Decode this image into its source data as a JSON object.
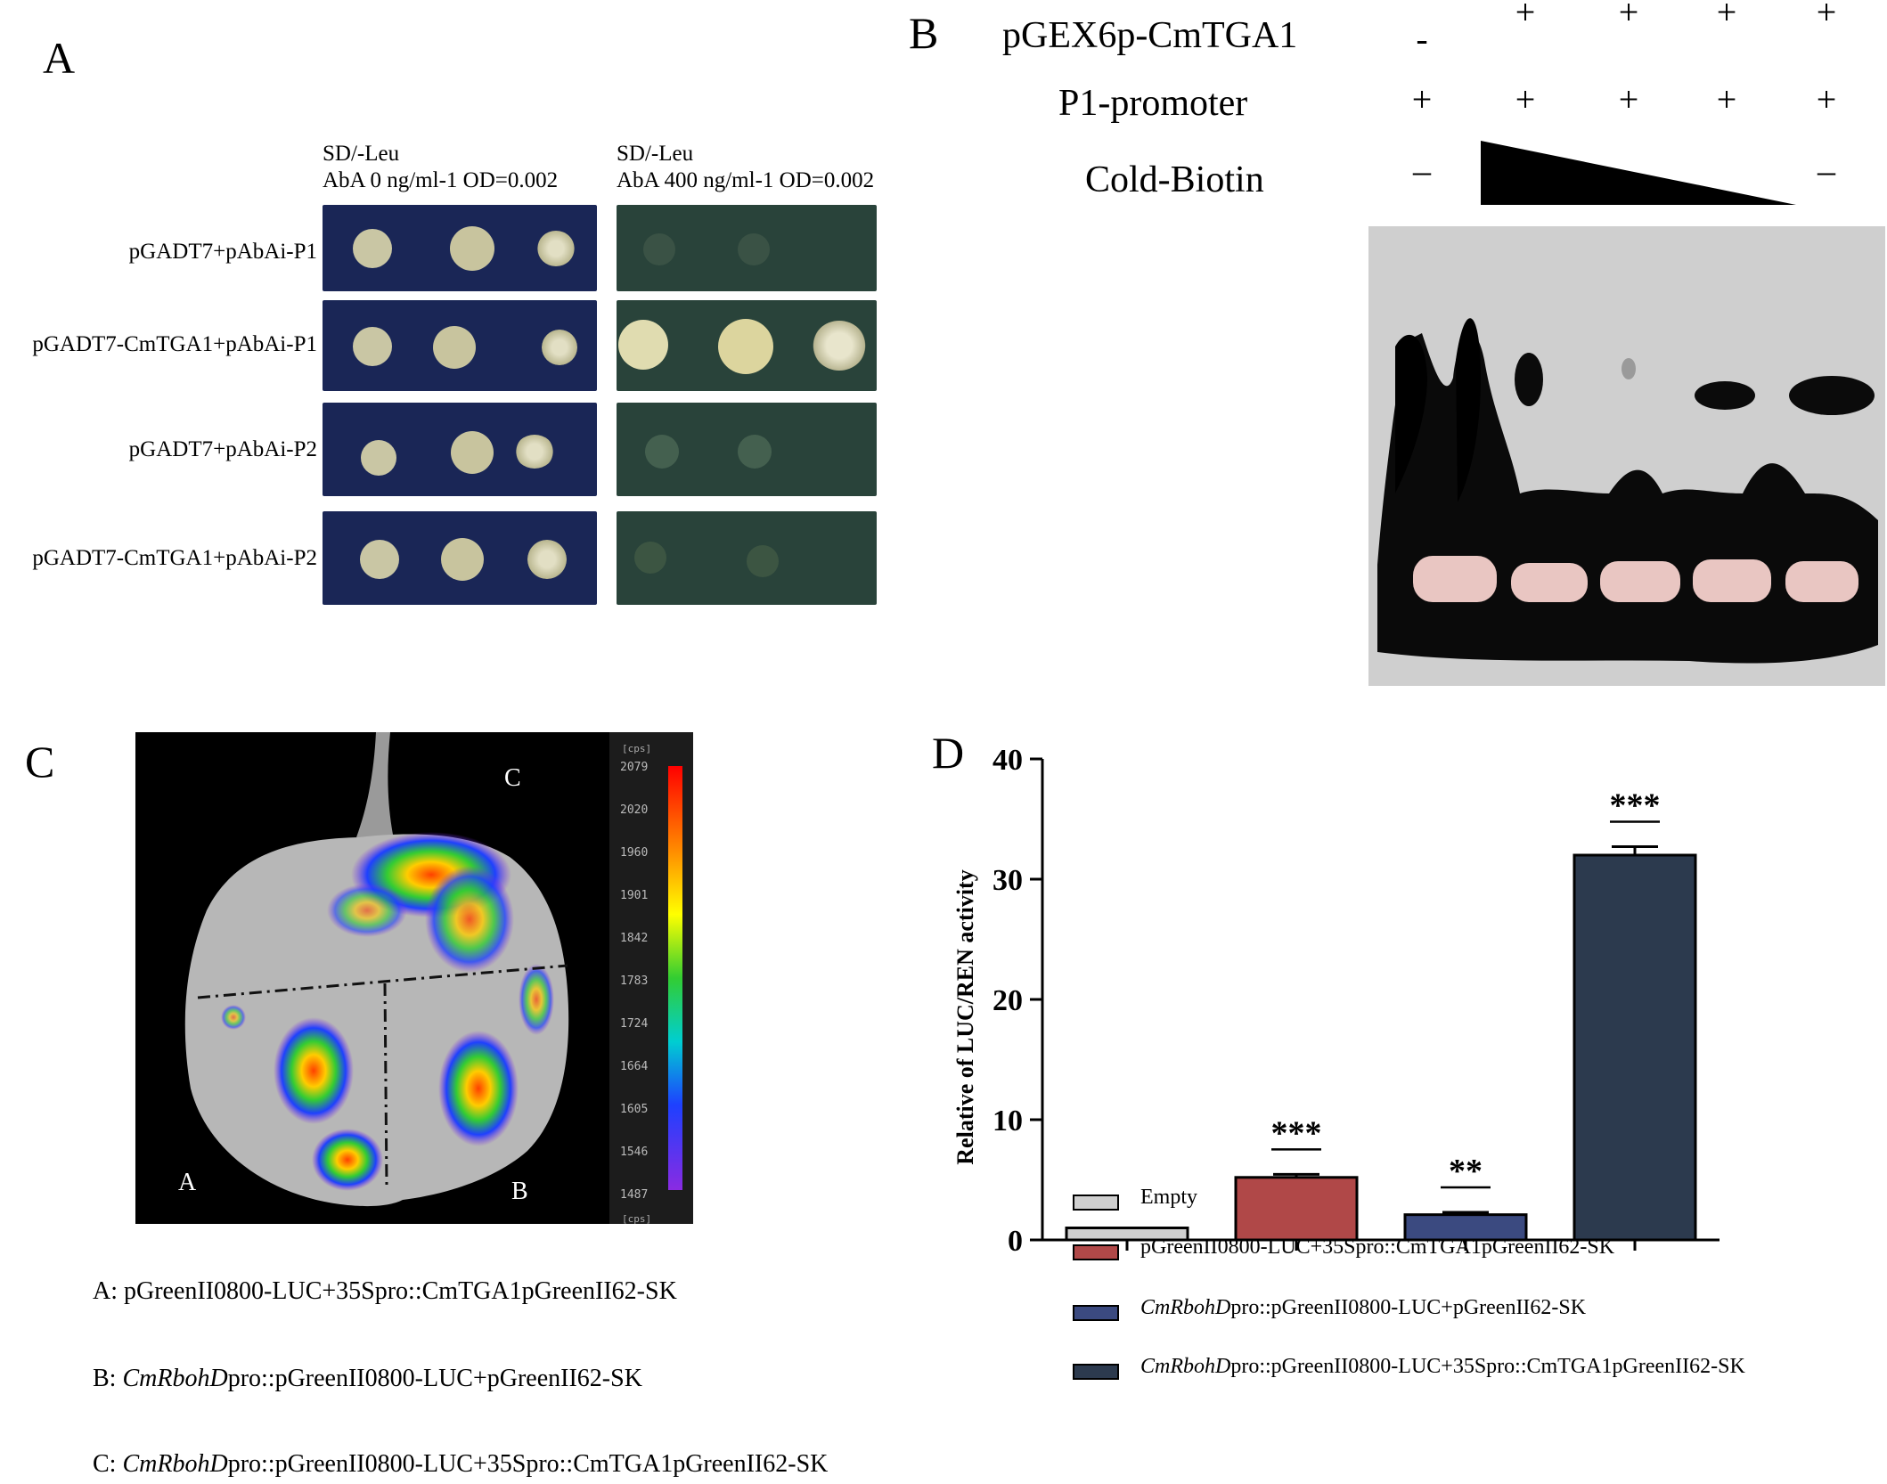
{
  "panels": {
    "A": {
      "letter": "A",
      "left_header": {
        "line1": "SD/-Leu",
        "line2": "AbA 0 ng/ml-1 OD=0.002"
      },
      "right_header": {
        "line1": "SD/-Leu",
        "line2": "AbA 400 ng/ml-1 OD=0.002"
      },
      "rows": [
        {
          "label": "pGADT7+pAbAi-P1"
        },
        {
          "label": "pGADT7-CmTGA1+pAbAi-P1"
        },
        {
          "label": "pGADT7+pAbAi-P2"
        },
        {
          "label": "pGADT7-CmTGA1+pAbAi-P2"
        }
      ],
      "colors": {
        "plate_left": "#1a2656",
        "plate_right": "#29433a",
        "colony": "#cfc9a6"
      }
    },
    "B": {
      "letter": "B",
      "row_labels": {
        "protein": "pGEX6p-CmTGA1",
        "probe": "P1-promoter",
        "cold": "Cold-Biotin"
      },
      "protein_signs": [
        "-",
        "+",
        "+",
        "+",
        "+"
      ],
      "probe_signs": [
        "+",
        "+",
        "+",
        "+",
        "+"
      ],
      "cold_signs": [
        "–",
        "",
        "",
        "",
        "–"
      ]
    },
    "C": {
      "letter": "C",
      "colorbar": {
        "unit": "[cps]",
        "ticks": [
          "2079",
          "2020",
          "1960",
          "1901",
          "1842",
          "1783",
          "1724",
          "1664",
          "1605",
          "1546",
          "1487"
        ]
      },
      "region_labels": {
        "a": "A",
        "b": "B",
        "c": "C"
      },
      "captions": [
        {
          "prefix": "A: ",
          "italic": "",
          "rest": "pGreenII0800-LUC+35Spro::CmTGA1pGreenII62-SK"
        },
        {
          "prefix": "B: ",
          "italic": "CmRbohD",
          "rest": "pro::pGreenII0800-LUC+pGreenII62-SK"
        },
        {
          "prefix": "C: ",
          "italic": "CmRbohD",
          "rest": "pro::pGreenII0800-LUC+35Spro::CmTGA1pGreenII62-SK"
        }
      ]
    },
    "D": {
      "letter": "D",
      "legend": [
        {
          "italic": "",
          "rest": "Empty"
        },
        {
          "italic": "",
          "rest": "pGreenII0800-LUC+35Spro::CmTGA1pGreenII62-SK"
        },
        {
          "italic": "CmRbohD",
          "rest": "pro::pGreenII0800-LUC+pGreenII62-SK"
        },
        {
          "italic": "CmRbohD",
          "rest": "pro::pGreenII0800-LUC+35Spro::CmTGA1pGreenII62-SK"
        }
      ]
    }
  },
  "chart_data": {
    "type": "bar",
    "ylabel": "Relative of  LUC/REN activity",
    "xlabel": "",
    "ylim": [
      0,
      40
    ],
    "yticks": [
      "0",
      "10",
      "20",
      "30",
      "40"
    ],
    "categories": [
      "Empty",
      "pGreenII0800-LUC+35Spro::CmTGA1pGreenII62-SK",
      "CmRbohDpro::pGreenII0800-LUC+pGreenII62-SK",
      "CmRbohDpro::pGreenII0800-LUC+35Spro::CmTGA1pGreenII62-SK"
    ],
    "values": [
      1.0,
      5.2,
      2.1,
      32.0
    ],
    "errors": [
      0.0,
      0.25,
      0.2,
      0.7
    ],
    "significance": [
      "",
      "***",
      "**",
      "***"
    ],
    "colors": [
      "#cfcfcf",
      "#b04848",
      "#3b4a80",
      "#2c3a4e"
    ],
    "grid": false,
    "legend": "bottom"
  }
}
